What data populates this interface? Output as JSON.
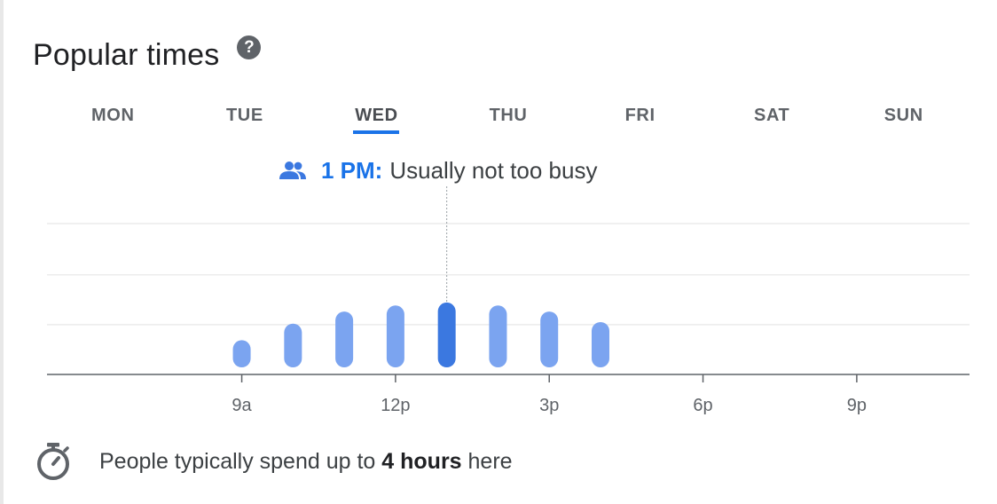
{
  "header": {
    "title": "Popular times",
    "help_icon": "help-circle-icon"
  },
  "days": [
    {
      "label": "MON",
      "active": false
    },
    {
      "label": "TUE",
      "active": false
    },
    {
      "label": "WED",
      "active": true
    },
    {
      "label": "THU",
      "active": false
    },
    {
      "label": "FRI",
      "active": false
    },
    {
      "label": "SAT",
      "active": false
    },
    {
      "label": "SUN",
      "active": false
    }
  ],
  "selected": {
    "time": "1 PM:",
    "status": "Usually not too busy"
  },
  "chart_data": {
    "type": "bar",
    "x": [
      9,
      10,
      11,
      12,
      13,
      14,
      15,
      16
    ],
    "values": [
      18,
      29,
      37,
      41,
      43,
      41,
      37,
      30
    ],
    "highlight_x": 13,
    "xticks": [
      9,
      12,
      15,
      18,
      21
    ],
    "tick_labels": [
      "9a",
      "12p",
      "3p",
      "6p",
      "9p"
    ],
    "xlim": [
      5.2,
      23.2
    ],
    "ylim": [
      0,
      100
    ],
    "grid": true,
    "colors": {
      "bar": "#7ba4f0",
      "highlight": "#3b78e0",
      "grid": "#ececec",
      "axis": "#5f6368"
    }
  },
  "footer": {
    "prefix": "People typically spend up to",
    "duration": "4 hours",
    "suffix": "here",
    "icon": "timer-icon"
  }
}
